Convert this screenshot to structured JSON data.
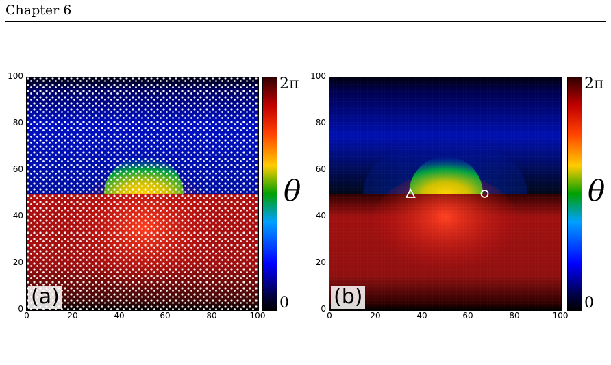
{
  "page_header": {
    "chapter": "Chapter 6"
  },
  "figure": {
    "colorbar": {
      "top_label": "2π",
      "bottom_label": "0",
      "symbol": "θ"
    },
    "panels": [
      {
        "label": "(a)",
        "style": "particles"
      },
      {
        "label": "(b)",
        "style": "continuous"
      }
    ]
  },
  "chart_data": [
    {
      "type": "heatmap",
      "x_ticks": [
        "0",
        "20",
        "40",
        "60",
        "80",
        "100"
      ],
      "y_ticks": [
        "0",
        "20",
        "40",
        "60",
        "80",
        "100"
      ],
      "xlim": [
        0,
        100
      ],
      "ylim": [
        0,
        100
      ],
      "colorbar_range": [
        "0",
        "2π"
      ],
      "colorbar_label": "θ"
    },
    {
      "type": "heatmap",
      "x_ticks": [
        "0",
        "20",
        "40",
        "60",
        "80",
        "100"
      ],
      "y_ticks": [
        "0",
        "20",
        "40",
        "60",
        "80",
        "100"
      ],
      "xlim": [
        0,
        100
      ],
      "ylim": [
        0,
        100
      ],
      "colorbar_range": [
        "0",
        "2π"
      ],
      "colorbar_label": "θ",
      "defects": [
        {
          "marker": "triangle",
          "x": 35,
          "y": 50
        },
        {
          "marker": "circle",
          "x": 67,
          "y": 50
        }
      ]
    }
  ]
}
